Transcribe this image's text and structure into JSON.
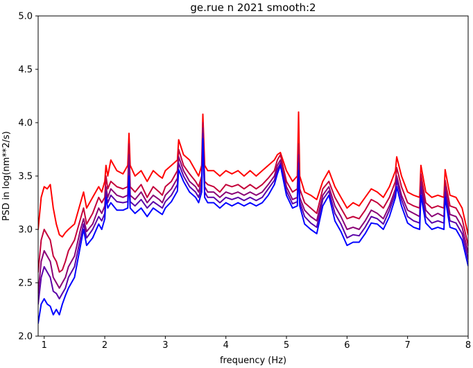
{
  "chart_data": {
    "type": "line",
    "title": "ge.rue n 2021 smooth:2",
    "xlabel": "frequency (Hz)",
    "ylabel": "PSD in log(nm**2/s)",
    "xlim": [
      0.9,
      8.0
    ],
    "ylim": [
      2.0,
      5.0
    ],
    "xticks": [
      1,
      2,
      3,
      4,
      5,
      6,
      7,
      8
    ],
    "yticks": [
      2.0,
      2.5,
      3.0,
      3.5,
      4.0,
      4.5,
      5.0
    ],
    "xtick_labels": [
      "1",
      "2",
      "3",
      "4",
      "5",
      "6",
      "7",
      "8"
    ],
    "ytick_labels": [
      "2.0",
      "2.5",
      "3.0",
      "3.5",
      "4.0",
      "4.5",
      "5.0"
    ],
    "grid": false,
    "legend": false,
    "series": [
      {
        "color": "#ff0000",
        "x": [
          0.9,
          0.95,
          1.0,
          1.05,
          1.1,
          1.15,
          1.2,
          1.25,
          1.3,
          1.35,
          1.4,
          1.5,
          1.6,
          1.65,
          1.7,
          1.8,
          1.9,
          1.95,
          2.0,
          2.02,
          2.05,
          2.1,
          2.2,
          2.3,
          2.38,
          2.4,
          2.42,
          2.5,
          2.6,
          2.7,
          2.8,
          2.9,
          2.95,
          3.0,
          3.1,
          3.2,
          3.22,
          3.3,
          3.4,
          3.5,
          3.55,
          3.6,
          3.62,
          3.65,
          3.7,
          3.8,
          3.9,
          4.0,
          4.1,
          4.2,
          4.3,
          4.4,
          4.5,
          4.6,
          4.7,
          4.8,
          4.85,
          4.9,
          5.0,
          5.1,
          5.18,
          5.2,
          5.22,
          5.3,
          5.4,
          5.5,
          5.6,
          5.7,
          5.8,
          5.9,
          6.0,
          6.1,
          6.2,
          6.3,
          6.4,
          6.5,
          6.6,
          6.7,
          6.8,
          6.82,
          6.9,
          7.0,
          7.1,
          7.2,
          7.22,
          7.3,
          7.4,
          7.5,
          7.6,
          7.62,
          7.7,
          7.8,
          7.9,
          8.0
        ],
        "y": [
          3.0,
          3.3,
          3.4,
          3.38,
          3.42,
          3.2,
          3.05,
          2.95,
          2.93,
          2.97,
          3.0,
          3.05,
          3.25,
          3.35,
          3.2,
          3.3,
          3.4,
          3.35,
          3.45,
          3.6,
          3.5,
          3.65,
          3.55,
          3.52,
          3.6,
          3.9,
          3.6,
          3.5,
          3.55,
          3.45,
          3.55,
          3.5,
          3.48,
          3.55,
          3.6,
          3.65,
          3.84,
          3.7,
          3.65,
          3.55,
          3.5,
          3.6,
          4.08,
          3.6,
          3.55,
          3.55,
          3.5,
          3.55,
          3.52,
          3.55,
          3.5,
          3.55,
          3.5,
          3.55,
          3.6,
          3.65,
          3.7,
          3.72,
          3.55,
          3.45,
          3.5,
          4.1,
          3.5,
          3.35,
          3.32,
          3.28,
          3.45,
          3.55,
          3.4,
          3.3,
          3.2,
          3.25,
          3.22,
          3.3,
          3.38,
          3.35,
          3.3,
          3.4,
          3.55,
          3.68,
          3.5,
          3.35,
          3.32,
          3.3,
          3.6,
          3.35,
          3.3,
          3.32,
          3.3,
          3.56,
          3.32,
          3.3,
          3.2,
          2.95
        ]
      },
      {
        "color": "#c4003a",
        "x": [
          0.9,
          0.95,
          1.0,
          1.05,
          1.1,
          1.15,
          1.2,
          1.25,
          1.3,
          1.35,
          1.4,
          1.5,
          1.6,
          1.65,
          1.7,
          1.8,
          1.9,
          1.95,
          2.0,
          2.02,
          2.05,
          2.1,
          2.2,
          2.3,
          2.38,
          2.4,
          2.42,
          2.5,
          2.6,
          2.7,
          2.8,
          2.9,
          2.95,
          3.0,
          3.1,
          3.2,
          3.22,
          3.3,
          3.4,
          3.5,
          3.55,
          3.6,
          3.62,
          3.65,
          3.7,
          3.8,
          3.9,
          4.0,
          4.1,
          4.2,
          4.3,
          4.4,
          4.5,
          4.6,
          4.7,
          4.8,
          4.85,
          4.9,
          5.0,
          5.1,
          5.18,
          5.2,
          5.22,
          5.3,
          5.4,
          5.5,
          5.6,
          5.7,
          5.8,
          5.9,
          6.0,
          6.1,
          6.2,
          6.3,
          6.4,
          6.5,
          6.6,
          6.7,
          6.8,
          6.82,
          6.9,
          7.0,
          7.1,
          7.2,
          7.22,
          7.3,
          7.4,
          7.5,
          7.6,
          7.62,
          7.7,
          7.8,
          7.9,
          8.0
        ],
        "y": [
          2.6,
          2.9,
          3.0,
          2.95,
          2.9,
          2.75,
          2.7,
          2.6,
          2.62,
          2.7,
          2.8,
          2.9,
          3.1,
          3.2,
          3.05,
          3.15,
          3.3,
          3.25,
          3.3,
          3.5,
          3.38,
          3.45,
          3.4,
          3.38,
          3.4,
          3.8,
          3.4,
          3.35,
          3.42,
          3.3,
          3.4,
          3.35,
          3.32,
          3.4,
          3.45,
          3.55,
          3.75,
          3.6,
          3.52,
          3.45,
          3.4,
          3.5,
          4.0,
          3.45,
          3.42,
          3.4,
          3.35,
          3.42,
          3.4,
          3.42,
          3.38,
          3.42,
          3.38,
          3.42,
          3.48,
          3.55,
          3.65,
          3.7,
          3.45,
          3.35,
          3.38,
          3.8,
          3.38,
          3.25,
          3.2,
          3.15,
          3.38,
          3.45,
          3.3,
          3.2,
          3.1,
          3.12,
          3.1,
          3.18,
          3.28,
          3.25,
          3.2,
          3.3,
          3.45,
          3.58,
          3.4,
          3.25,
          3.22,
          3.2,
          3.52,
          3.25,
          3.2,
          3.22,
          3.2,
          3.46,
          3.22,
          3.2,
          3.1,
          2.85
        ]
      },
      {
        "color": "#8a0075",
        "x": [
          0.9,
          0.95,
          1.0,
          1.05,
          1.1,
          1.15,
          1.2,
          1.25,
          1.3,
          1.35,
          1.4,
          1.5,
          1.6,
          1.65,
          1.7,
          1.8,
          1.9,
          1.95,
          2.0,
          2.02,
          2.05,
          2.1,
          2.2,
          2.3,
          2.38,
          2.4,
          2.42,
          2.5,
          2.6,
          2.7,
          2.8,
          2.9,
          2.95,
          3.0,
          3.1,
          3.2,
          3.22,
          3.3,
          3.4,
          3.5,
          3.55,
          3.6,
          3.62,
          3.65,
          3.7,
          3.8,
          3.9,
          4.0,
          4.1,
          4.2,
          4.3,
          4.4,
          4.5,
          4.6,
          4.7,
          4.8,
          4.85,
          4.9,
          5.0,
          5.1,
          5.18,
          5.2,
          5.22,
          5.3,
          5.4,
          5.5,
          5.6,
          5.7,
          5.8,
          5.9,
          6.0,
          6.1,
          6.2,
          6.3,
          6.4,
          6.5,
          6.6,
          6.7,
          6.8,
          6.82,
          6.9,
          7.0,
          7.1,
          7.2,
          7.22,
          7.3,
          7.4,
          7.5,
          7.6,
          7.62,
          7.7,
          7.8,
          7.9,
          8.0
        ],
        "y": [
          2.4,
          2.7,
          2.8,
          2.75,
          2.7,
          2.55,
          2.5,
          2.45,
          2.5,
          2.55,
          2.65,
          2.75,
          3.0,
          3.1,
          2.98,
          3.05,
          3.2,
          3.15,
          3.22,
          3.4,
          3.3,
          3.38,
          3.32,
          3.3,
          3.32,
          3.7,
          3.32,
          3.28,
          3.35,
          3.25,
          3.32,
          3.28,
          3.25,
          3.32,
          3.38,
          3.48,
          3.68,
          3.55,
          3.45,
          3.4,
          3.35,
          3.45,
          3.95,
          3.4,
          3.35,
          3.35,
          3.3,
          3.35,
          3.33,
          3.35,
          3.32,
          3.35,
          3.32,
          3.35,
          3.42,
          3.5,
          3.6,
          3.65,
          3.4,
          3.28,
          3.3,
          3.7,
          3.3,
          3.18,
          3.12,
          3.08,
          3.32,
          3.4,
          3.22,
          3.12,
          3.0,
          3.02,
          3.0,
          3.08,
          3.18,
          3.15,
          3.1,
          3.22,
          3.38,
          3.5,
          3.32,
          3.18,
          3.15,
          3.12,
          3.45,
          3.18,
          3.12,
          3.15,
          3.12,
          3.4,
          3.14,
          3.12,
          3.02,
          2.78
        ]
      },
      {
        "color": "#5a00a8",
        "x": [
          0.9,
          0.95,
          1.0,
          1.05,
          1.1,
          1.15,
          1.2,
          1.25,
          1.3,
          1.35,
          1.4,
          1.5,
          1.6,
          1.65,
          1.7,
          1.8,
          1.9,
          1.95,
          2.0,
          2.02,
          2.05,
          2.1,
          2.2,
          2.3,
          2.38,
          2.4,
          2.42,
          2.5,
          2.6,
          2.7,
          2.8,
          2.9,
          2.95,
          3.0,
          3.1,
          3.2,
          3.22,
          3.3,
          3.4,
          3.5,
          3.55,
          3.6,
          3.62,
          3.65,
          3.7,
          3.8,
          3.9,
          4.0,
          4.1,
          4.2,
          4.3,
          4.4,
          4.5,
          4.6,
          4.7,
          4.8,
          4.85,
          4.9,
          5.0,
          5.1,
          5.18,
          5.2,
          5.22,
          5.3,
          5.4,
          5.5,
          5.6,
          5.7,
          5.8,
          5.9,
          6.0,
          6.1,
          6.2,
          6.3,
          6.4,
          6.5,
          6.6,
          6.7,
          6.8,
          6.82,
          6.9,
          7.0,
          7.1,
          7.2,
          7.22,
          7.3,
          7.4,
          7.5,
          7.6,
          7.62,
          7.7,
          7.8,
          7.9,
          8.0
        ],
        "y": [
          2.3,
          2.55,
          2.65,
          2.6,
          2.55,
          2.42,
          2.4,
          2.35,
          2.4,
          2.45,
          2.55,
          2.65,
          2.92,
          3.05,
          2.92,
          3.0,
          3.12,
          3.08,
          3.15,
          3.35,
          3.25,
          3.32,
          3.26,
          3.25,
          3.26,
          3.6,
          3.26,
          3.22,
          3.28,
          3.2,
          3.26,
          3.22,
          3.2,
          3.26,
          3.32,
          3.42,
          3.62,
          3.5,
          3.4,
          3.35,
          3.3,
          3.4,
          3.9,
          3.35,
          3.3,
          3.3,
          3.25,
          3.3,
          3.28,
          3.3,
          3.27,
          3.3,
          3.27,
          3.3,
          3.38,
          3.46,
          3.56,
          3.62,
          3.36,
          3.24,
          3.26,
          3.62,
          3.26,
          3.12,
          3.06,
          3.02,
          3.28,
          3.36,
          3.15,
          3.05,
          2.92,
          2.95,
          2.94,
          3.02,
          3.12,
          3.1,
          3.05,
          3.18,
          3.34,
          3.46,
          3.28,
          3.12,
          3.08,
          3.06,
          3.4,
          3.12,
          3.06,
          3.08,
          3.06,
          3.35,
          3.08,
          3.06,
          2.96,
          2.72
        ]
      },
      {
        "color": "#0000ff",
        "x": [
          0.9,
          0.95,
          1.0,
          1.05,
          1.1,
          1.15,
          1.2,
          1.25,
          1.3,
          1.35,
          1.4,
          1.5,
          1.6,
          1.65,
          1.7,
          1.8,
          1.9,
          1.95,
          2.0,
          2.02,
          2.05,
          2.1,
          2.2,
          2.3,
          2.38,
          2.4,
          2.42,
          2.5,
          2.6,
          2.7,
          2.8,
          2.9,
          2.95,
          3.0,
          3.1,
          3.2,
          3.22,
          3.3,
          3.4,
          3.5,
          3.55,
          3.6,
          3.62,
          3.65,
          3.7,
          3.8,
          3.9,
          4.0,
          4.1,
          4.2,
          4.3,
          4.4,
          4.5,
          4.6,
          4.7,
          4.8,
          4.85,
          4.9,
          5.0,
          5.1,
          5.18,
          5.2,
          5.22,
          5.3,
          5.4,
          5.5,
          5.6,
          5.7,
          5.8,
          5.9,
          6.0,
          6.1,
          6.2,
          6.3,
          6.4,
          6.5,
          6.6,
          6.7,
          6.8,
          6.82,
          6.9,
          7.0,
          7.1,
          7.2,
          7.22,
          7.3,
          7.4,
          7.5,
          7.6,
          7.62,
          7.7,
          7.8,
          7.9,
          8.0
        ],
        "y": [
          2.12,
          2.3,
          2.35,
          2.3,
          2.28,
          2.2,
          2.25,
          2.2,
          2.3,
          2.38,
          2.45,
          2.55,
          2.85,
          3.0,
          2.85,
          2.92,
          3.05,
          3.0,
          3.1,
          3.3,
          3.2,
          3.25,
          3.18,
          3.18,
          3.2,
          3.5,
          3.2,
          3.15,
          3.2,
          3.12,
          3.2,
          3.16,
          3.14,
          3.2,
          3.26,
          3.36,
          3.56,
          3.45,
          3.35,
          3.3,
          3.25,
          3.35,
          3.85,
          3.3,
          3.25,
          3.25,
          3.2,
          3.25,
          3.22,
          3.25,
          3.22,
          3.25,
          3.22,
          3.25,
          3.32,
          3.42,
          3.52,
          3.6,
          3.32,
          3.2,
          3.22,
          3.55,
          3.22,
          3.05,
          3.0,
          2.96,
          3.22,
          3.32,
          3.08,
          2.98,
          2.85,
          2.88,
          2.88,
          2.96,
          3.06,
          3.05,
          3.0,
          3.12,
          3.3,
          3.4,
          3.22,
          3.06,
          3.02,
          3.0,
          3.32,
          3.06,
          3.0,
          3.02,
          3.0,
          3.3,
          3.02,
          3.0,
          2.9,
          2.66
        ]
      }
    ]
  }
}
